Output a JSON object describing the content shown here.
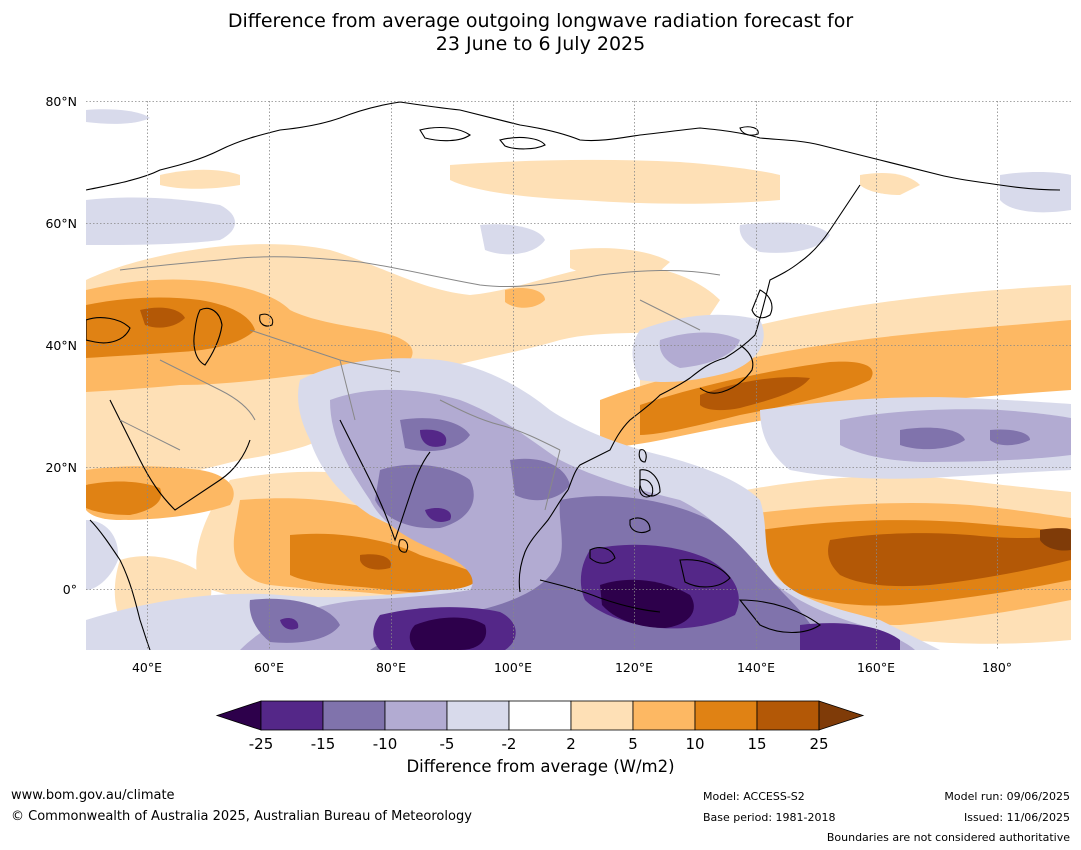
{
  "title": {
    "line1": "Difference from average outgoing longwave radiation forecast for",
    "line2": "23 June to 6 July 2025"
  },
  "map": {
    "lat_labels": [
      "80°N",
      "60°N",
      "40°N",
      "20°N",
      "0°"
    ],
    "lon_labels": [
      "40°E",
      "60°E",
      "80°E",
      "100°E",
      "120°E",
      "140°E",
      "160°E",
      "180°"
    ],
    "field_colors": {
      "below_-25": "#2d004b",
      "-25_-15": "#542788",
      "-15_-10": "#8073ac",
      "-10_-5": "#b2abd2",
      "-5_-2": "#d8daeb",
      "-2_2": "#ffffff",
      "2_5": "#fee0b6",
      "5_10": "#fdb863",
      "10_15": "#e08214",
      "15_25": "#b35806",
      "above_25": "#7f3b08"
    },
    "land_outline_color": "#000000",
    "border_color": "#888888"
  },
  "colorbar": {
    "ticks": [
      "-25",
      "-15",
      "-10",
      "-5",
      "-2",
      "2",
      "5",
      "10",
      "15",
      "25"
    ],
    "colors": [
      "#2d004b",
      "#542788",
      "#8073ac",
      "#b2abd2",
      "#d8daeb",
      "#ffffff",
      "#fee0b6",
      "#fdb863",
      "#e08214",
      "#b35806",
      "#7f3b08"
    ],
    "label": "Difference from average (W/m2)"
  },
  "footer": {
    "website": "www.bom.gov.au/climate",
    "copyright": "© Commonwealth of Australia 2025, Australian Bureau of Meteorology",
    "model": "Model: ACCESS-S2",
    "base_period": "Base period: 1981-2018",
    "model_run": "Model run: 09/06/2025",
    "issued": "Issued: 11/06/2025",
    "disclaimer": "Boundaries are not considered authoritative"
  }
}
